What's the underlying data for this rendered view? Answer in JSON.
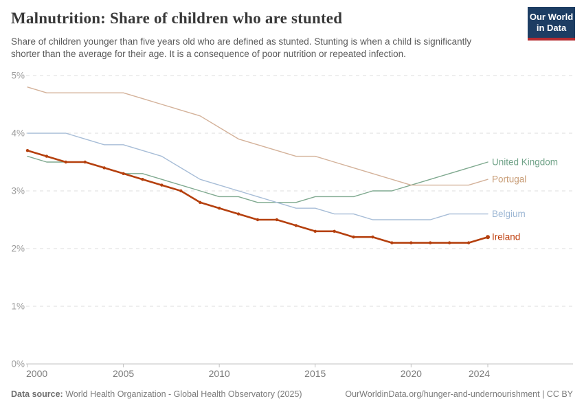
{
  "header": {
    "title": "Malnutrition: Share of children who are stunted",
    "subtitle_line1": "Share of children younger than five years old who are defined as stunted. Stunting is when a child is significantly",
    "subtitle_line2": "shorter than the average for their age. It is a consequence of poor nutrition or repeated infection.",
    "logo": {
      "line1": "Our World",
      "line2": "in Data",
      "bg_color": "#1d3d63",
      "accent_color": "#b52b30"
    }
  },
  "footer": {
    "source_label": "Data source:",
    "source_text": " World Health Organization - Global Health Observatory (2025)",
    "link_text": "OurWorldinData.org/hunger-and-undernourishment | CC BY"
  },
  "chart_data": {
    "type": "line",
    "title": "Malnutrition: Share of children who are stunted",
    "xlabel": "",
    "ylabel": "",
    "xlim": [
      2000,
      2024
    ],
    "ylim": [
      0,
      5
    ],
    "grid": "horizontal-dashed",
    "legend_position": "right-edge-labels",
    "x_ticks": [
      2000,
      2005,
      2010,
      2015,
      2020,
      2024
    ],
    "y_ticks": [
      {
        "value": 0,
        "label": "0%"
      },
      {
        "value": 1,
        "label": "1%"
      },
      {
        "value": 2,
        "label": "2%"
      },
      {
        "value": 3,
        "label": "3%"
      },
      {
        "value": 4,
        "label": "4%"
      },
      {
        "value": 5,
        "label": "5%"
      }
    ],
    "x": [
      2000,
      2001,
      2002,
      2003,
      2004,
      2005,
      2006,
      2007,
      2008,
      2009,
      2010,
      2011,
      2012,
      2013,
      2014,
      2015,
      2016,
      2017,
      2018,
      2019,
      2020,
      2021,
      2022,
      2023,
      2024
    ],
    "series": [
      {
        "name": "United Kingdom",
        "color": "#7FA98F",
        "label_color": "#6FA287",
        "emphasized": false,
        "values": [
          3.6,
          3.5,
          3.5,
          3.5,
          3.4,
          3.3,
          3.3,
          3.2,
          3.1,
          3.0,
          2.9,
          2.9,
          2.8,
          2.8,
          2.8,
          2.9,
          2.9,
          2.9,
          3.0,
          3.0,
          3.1,
          3.2,
          3.3,
          3.4,
          3.5
        ]
      },
      {
        "name": "Portugal",
        "color": "#D4B29A",
        "label_color": "#C99E78",
        "emphasized": false,
        "values": [
          4.8,
          4.7,
          4.7,
          4.7,
          4.7,
          4.7,
          4.6,
          4.5,
          4.4,
          4.3,
          4.1,
          3.9,
          3.8,
          3.7,
          3.6,
          3.6,
          3.5,
          3.4,
          3.3,
          3.2,
          3.1,
          3.1,
          3.1,
          3.1,
          3.2
        ]
      },
      {
        "name": "Belgium",
        "color": "#A7BDD7",
        "label_color": "#9DB7D4",
        "emphasized": false,
        "values": [
          4.0,
          4.0,
          4.0,
          3.9,
          3.8,
          3.8,
          3.7,
          3.6,
          3.4,
          3.2,
          3.1,
          3.0,
          2.9,
          2.8,
          2.7,
          2.7,
          2.6,
          2.6,
          2.5,
          2.5,
          2.5,
          2.5,
          2.6,
          2.6,
          2.6
        ]
      },
      {
        "name": "Ireland",
        "color": "#B5400E",
        "label_color": "#BE3B09",
        "emphasized": true,
        "values": [
          3.7,
          3.6,
          3.5,
          3.5,
          3.4,
          3.3,
          3.2,
          3.1,
          3.0,
          2.8,
          2.7,
          2.6,
          2.5,
          2.5,
          2.4,
          2.3,
          2.3,
          2.2,
          2.2,
          2.1,
          2.1,
          2.1,
          2.1,
          2.1,
          2.2
        ]
      }
    ],
    "style": {
      "grid_color": "#dcdcdc",
      "axis_color": "#c2c2c2",
      "y_label_color": "#9e9e9e",
      "x_label_color": "#7a7a7a",
      "background": "#ffffff"
    }
  }
}
